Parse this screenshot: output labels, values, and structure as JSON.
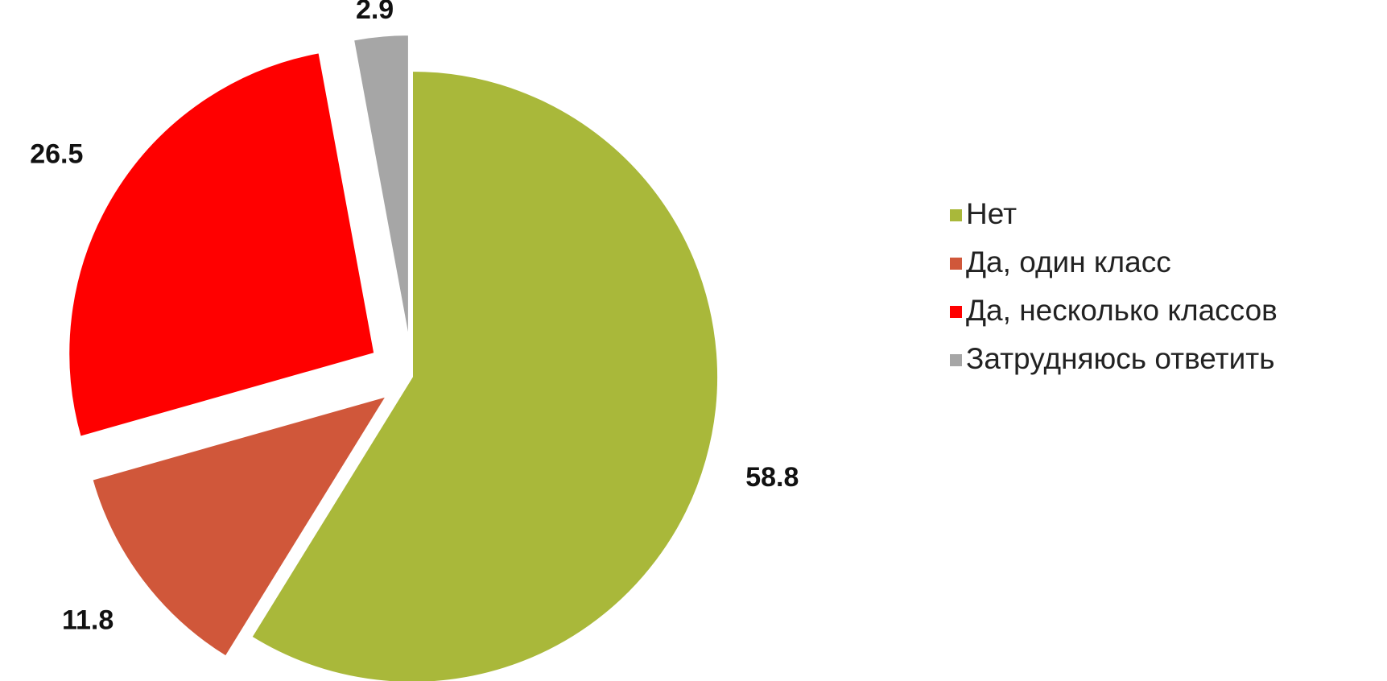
{
  "chart_data": {
    "type": "pie",
    "categories": [
      "Нет",
      "Да, один класс",
      "Да, несколько классов",
      "Затрудняюсь ответить"
    ],
    "values": [
      58.8,
      11.8,
      26.5,
      2.9
    ],
    "colors": [
      "#a9b83a",
      "#d0573a",
      "#ff0000",
      "#a6a6a6"
    ],
    "legend": "right"
  }
}
